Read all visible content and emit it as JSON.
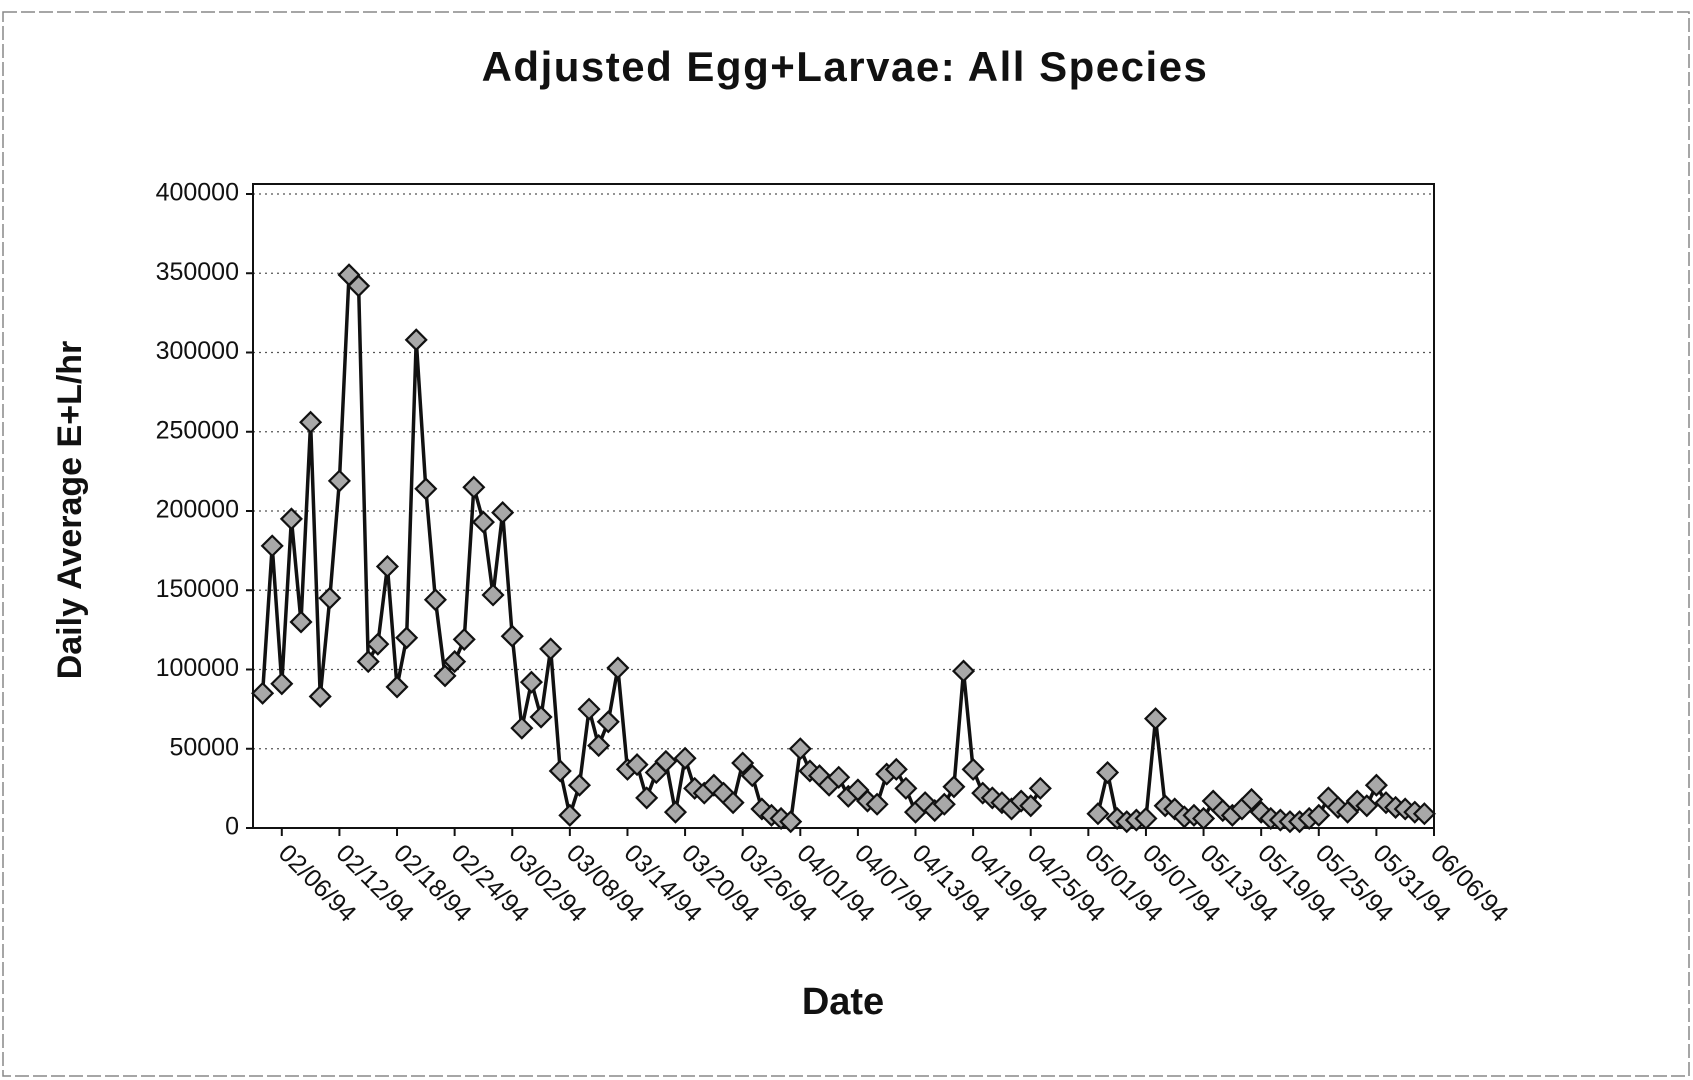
{
  "chart_data": {
    "type": "line",
    "title": "Adjusted Egg+Larvae: All Species",
    "xlabel": "Date",
    "ylabel": "Daily Average E+L/hr",
    "x": [
      "02/04/94",
      "02/05/94",
      "02/06/94",
      "02/07/94",
      "02/08/94",
      "02/09/94",
      "02/10/94",
      "02/11/94",
      "02/12/94",
      "02/13/94",
      "02/14/94",
      "02/15/94",
      "02/16/94",
      "02/17/94",
      "02/18/94",
      "02/19/94",
      "02/20/94",
      "02/21/94",
      "02/22/94",
      "02/23/94",
      "02/24/94",
      "02/25/94",
      "02/26/94",
      "02/27/94",
      "02/28/94",
      "03/01/94",
      "03/02/94",
      "03/03/94",
      "03/04/94",
      "03/05/94",
      "03/06/94",
      "03/07/94",
      "03/08/94",
      "03/09/94",
      "03/10/94",
      "03/11/94",
      "03/12/94",
      "03/13/94",
      "03/14/94",
      "03/15/94",
      "03/16/94",
      "03/17/94",
      "03/18/94",
      "03/19/94",
      "03/20/94",
      "03/21/94",
      "03/22/94",
      "03/23/94",
      "03/24/94",
      "03/25/94",
      "03/26/94",
      "03/27/94",
      "03/28/94",
      "03/29/94",
      "03/30/94",
      "03/31/94",
      "04/01/94",
      "04/02/94",
      "04/03/94",
      "04/04/94",
      "04/05/94",
      "04/06/94",
      "04/07/94",
      "04/08/94",
      "04/09/94",
      "04/10/94",
      "04/11/94",
      "04/12/94",
      "04/13/94",
      "04/14/94",
      "04/15/94",
      "04/16/94",
      "04/17/94",
      "04/18/94",
      "04/19/94",
      "04/20/94",
      "04/21/94",
      "04/22/94",
      "04/23/94",
      "04/24/94",
      "04/25/94",
      "04/26/94",
      "04/27/94",
      "04/28/94",
      "04/29/94",
      "04/30/94",
      "05/01/94",
      "05/02/94",
      "05/03/94",
      "05/04/94",
      "05/05/94",
      "05/06/94",
      "05/07/94",
      "05/08/94",
      "05/09/94",
      "05/10/94",
      "05/11/94",
      "05/12/94",
      "05/13/94",
      "05/14/94",
      "05/15/94",
      "05/16/94",
      "05/17/94",
      "05/18/94",
      "05/19/94",
      "05/20/94",
      "05/21/94",
      "05/22/94",
      "05/23/94",
      "05/24/94",
      "05/25/94",
      "05/26/94",
      "05/27/94",
      "05/28/94",
      "05/29/94",
      "05/30/94",
      "05/31/94",
      "06/01/94",
      "06/02/94",
      "06/03/94",
      "06/04/94",
      "06/05/94"
    ],
    "series": [
      {
        "name": "All Species",
        "color": "#111111",
        "marker_color": "#a8a8a8",
        "values": [
          85000,
          178000,
          91000,
          195000,
          130000,
          256000,
          83000,
          145000,
          219000,
          349000,
          342000,
          105000,
          116000,
          165000,
          89000,
          120000,
          308000,
          214000,
          144000,
          96000,
          105000,
          119000,
          215000,
          193000,
          147000,
          199000,
          121000,
          63000,
          92000,
          70000,
          113000,
          36000,
          8000,
          27000,
          75000,
          52000,
          67000,
          101000,
          37000,
          40000,
          19000,
          35000,
          42000,
          10000,
          44000,
          25000,
          22000,
          27000,
          22000,
          16000,
          41000,
          33000,
          12000,
          8000,
          6000,
          4000,
          50000,
          36000,
          33000,
          27000,
          32000,
          20000,
          24000,
          17000,
          15000,
          34000,
          37000,
          25000,
          10000,
          16000,
          11000,
          15000,
          26000,
          99000,
          37000,
          22000,
          19000,
          16000,
          12000,
          17000,
          14000,
          25000,
          null,
          null,
          null,
          null,
          null,
          9000,
          35000,
          6000,
          4000,
          5000,
          6000,
          69000,
          14000,
          12000,
          7000,
          8000,
          6000,
          17000,
          11000,
          8000,
          12000,
          18000,
          10000,
          6000,
          5000,
          4000,
          4000,
          6000,
          8000,
          19000,
          13000,
          10000,
          17000,
          14000,
          27000,
          16000,
          13000,
          12000,
          10000,
          9000
        ]
      }
    ],
    "xlim": [
      "02/03/94",
      "06/06/94"
    ],
    "xticks": [
      "02/06/94",
      "02/12/94",
      "02/18/94",
      "02/24/94",
      "03/02/94",
      "03/08/94",
      "03/14/94",
      "03/20/94",
      "03/26/94",
      "04/01/94",
      "04/07/94",
      "04/13/94",
      "04/19/94",
      "04/25/94",
      "05/01/94",
      "05/07/94",
      "05/13/94",
      "05/19/94",
      "05/25/94",
      "05/31/94",
      "06/06/94"
    ],
    "ylim": [
      0,
      400000
    ],
    "yticks": [
      0,
      50000,
      100000,
      150000,
      200000,
      250000,
      300000,
      350000,
      400000
    ],
    "grid": true
  }
}
